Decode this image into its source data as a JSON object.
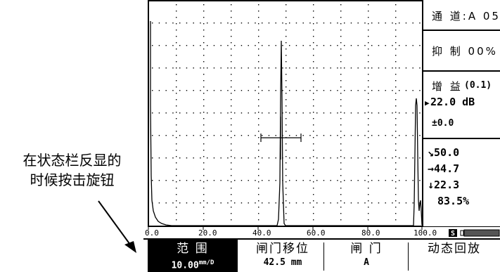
{
  "annotation": {
    "line1": "在状态栏反显的",
    "line2": "时候按击旋钮"
  },
  "status_panel": {
    "channel": "通 道:A 05",
    "reject": "抑 制 00%",
    "gain_label": "增 益",
    "gain_step": "(0.1)",
    "gain_value": "22.0  dB",
    "gain_offset": "±0.0",
    "readout_angle": "50.0",
    "readout_horizontal": "44.7",
    "readout_vertical": "22.3",
    "readout_percent": "83.5%",
    "indicator_s": "S"
  },
  "x_axis_labels": [
    "0.0",
    "20.0",
    "40.0",
    "60.0",
    "80.0",
    "100.0"
  ],
  "function_keys": [
    {
      "label": "范  围",
      "value": "10.00",
      "unit": "mm/D"
    },
    {
      "label": "闸门移位",
      "value": "42.5 mm"
    },
    {
      "label": "闸  门",
      "value": "A"
    },
    {
      "label": "动态回放",
      "value": ""
    }
  ]
}
